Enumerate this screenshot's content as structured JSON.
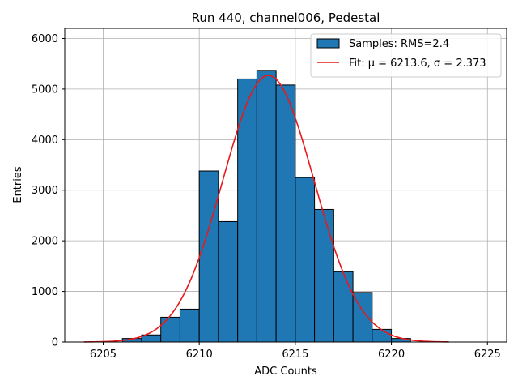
{
  "chart_data": {
    "type": "bar",
    "title": "Run 440, channel006, Pedestal",
    "xlabel": "ADC Counts",
    "ylabel": "Entries",
    "xlim": [
      6203,
      6226
    ],
    "ylim": [
      0,
      6200
    ],
    "xticks": [
      "6205",
      "6210",
      "6215",
      "6220",
      "6225"
    ],
    "yticks": [
      "0",
      "1000",
      "2000",
      "3000",
      "4000",
      "5000",
      "6000"
    ],
    "grid": true,
    "legend_position": "top-right",
    "histogram": {
      "name": "Samples: RMS=2.4",
      "color": "#1f77b4",
      "bin_width": 1,
      "bin_starts": [
        6206,
        6207,
        6208,
        6209,
        6210,
        6211,
        6212,
        6213,
        6214,
        6215,
        6216,
        6217,
        6218,
        6219,
        6220
      ],
      "values": [
        70,
        140,
        490,
        650,
        3380,
        2380,
        5200,
        5370,
        5080,
        3250,
        2620,
        1390,
        980,
        250,
        70
      ]
    },
    "fit": {
      "name": "Fit: μ = 6213.6, σ = 2.373",
      "color": "#e8191b",
      "mu": 6213.6,
      "sigma": 2.373,
      "amplitude": 5270,
      "x_range": [
        6204,
        6223
      ]
    }
  }
}
